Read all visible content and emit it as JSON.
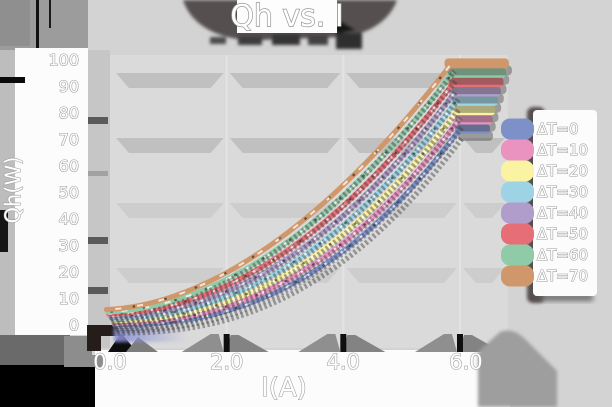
{
  "title": "Qh vs. I",
  "axes": {
    "x_label": "I(A)",
    "y_label": "Qh(W)",
    "x_ticks": [
      "0.0",
      "2.0",
      "4.0",
      "6.0"
    ],
    "y_ticks": [
      "0",
      "10",
      "20",
      "30",
      "40",
      "50",
      "60",
      "70",
      "80",
      "90",
      "100"
    ]
  },
  "legend": {
    "items": [
      {
        "label": "ΔT=0",
        "color": "#7e90c8"
      },
      {
        "label": "ΔT=10",
        "color": "#ea92c0"
      },
      {
        "label": "ΔT=20",
        "color": "#f9f3a2"
      },
      {
        "label": "ΔT=30",
        "color": "#9dd3e4"
      },
      {
        "label": "ΔT=40",
        "color": "#b19dcb"
      },
      {
        "label": "ΔT=50",
        "color": "#e66f77"
      },
      {
        "label": "ΔT=60",
        "color": "#90cba7"
      },
      {
        "label": "ΔT=70",
        "color": "#d0976b"
      }
    ]
  },
  "chart_data": {
    "type": "line",
    "title": "Qh vs. I",
    "xlabel": "I(A)",
    "ylabel": "Qh(W)",
    "xlim": [
      0,
      6
    ],
    "ylim": [
      0,
      100
    ],
    "x_tick_values": [
      0,
      2,
      4,
      6
    ],
    "y_tick_values": [
      0,
      10,
      20,
      30,
      40,
      50,
      60,
      70,
      80,
      90,
      100
    ],
    "grid": "horizontal-major-bands",
    "legend_position": "right",
    "style": "3d-ribbon-lines-with-drop-shadows",
    "x": [
      0,
      1,
      2,
      3,
      4,
      5,
      6
    ],
    "series": [
      {
        "name": "ΔT=0",
        "color": "#7e90c8",
        "end_value": 74.0,
        "exponent": 2.4,
        "values": [
          0,
          1.0,
          5.3,
          14.0,
          28.0,
          47.8,
          74.0
        ]
      },
      {
        "name": "ΔT=10",
        "color": "#ea92c0",
        "end_value": 76.7,
        "exponent": 2.32,
        "values": [
          0,
          1.2,
          6.0,
          15.4,
          29.9,
          50.2,
          76.7
        ]
      },
      {
        "name": "ΔT=20",
        "color": "#f9f3a2",
        "end_value": 79.4,
        "exponent": 2.24,
        "values": [
          0,
          1.4,
          6.8,
          16.8,
          32.0,
          52.8,
          79.4
        ]
      },
      {
        "name": "ΔT=30",
        "color": "#9dd3e4",
        "end_value": 82.1,
        "exponent": 2.16,
        "values": [
          0,
          1.7,
          7.7,
          18.4,
          34.1,
          55.4,
          82.1
        ]
      },
      {
        "name": "ΔT=40",
        "color": "#b19dcb",
        "end_value": 84.8,
        "exponent": 2.08,
        "values": [
          0,
          2.0,
          8.6,
          20.1,
          36.3,
          58.0,
          84.8
        ]
      },
      {
        "name": "ΔT=50",
        "color": "#e66f77",
        "end_value": 87.5,
        "exponent": 2.0,
        "values": [
          0,
          2.4,
          9.7,
          21.9,
          38.9,
          60.8,
          87.5
        ]
      },
      {
        "name": "ΔT=60",
        "color": "#90cba7",
        "end_value": 90.2,
        "exponent": 1.92,
        "values": [
          0,
          2.9,
          10.9,
          23.8,
          41.4,
          63.6,
          90.2
        ]
      },
      {
        "name": "ΔT=70",
        "color": "#d0976b",
        "end_value": 92.9,
        "exponent": 1.84,
        "values": [
          0,
          3.4,
          12.3,
          26.0,
          44.0,
          66.5,
          92.9
        ]
      }
    ]
  },
  "colors": {
    "page_bg": "#d3d3d3",
    "plot_bg": "#dadada",
    "grid_band": "#c0c0c0",
    "shadow_dark": "#57504f",
    "text_fill": "#ffffff",
    "text_outline": "#9a9a9a"
  }
}
